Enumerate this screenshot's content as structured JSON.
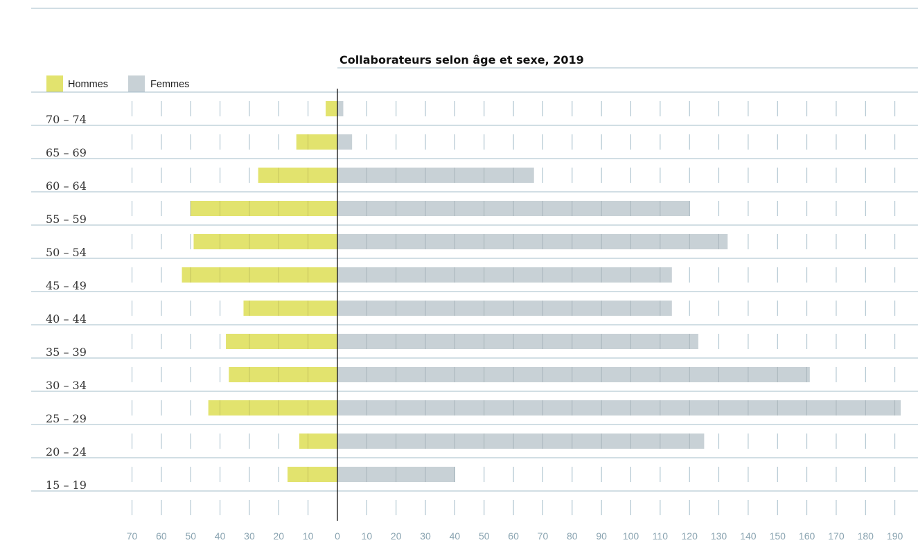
{
  "colors": {
    "men": "#e2e36e",
    "women": "#c8d1d6",
    "grid": "#a3bcc9",
    "axis": "#111111",
    "tick_text": "#8aa4b1"
  },
  "chart_data": {
    "type": "bar",
    "orientation": "horizontal-population-pyramid",
    "title": "Collaborateurs selon âge et sexe, 2019",
    "legend_position": "top-left",
    "categories": [
      "70 – 74",
      "65 – 69",
      "60 – 64",
      "55 – 59",
      "50 – 54",
      "45 – 49",
      "40 – 44",
      "35 – 39",
      "30 – 34",
      "25 – 29",
      "20 – 24",
      "15 – 19"
    ],
    "series": [
      {
        "name": "Hommes",
        "values": [
          4,
          14,
          27,
          50,
          49,
          53,
          32,
          38,
          37,
          44,
          13,
          17
        ]
      },
      {
        "name": "Femmes",
        "values": [
          2,
          5,
          67,
          120,
          133,
          114,
          114,
          123,
          161,
          192,
          125,
          40
        ]
      }
    ],
    "xlim": [
      -70,
      190
    ],
    "x_tick_labels": [
      "70",
      "60",
      "50",
      "40",
      "30",
      "20",
      "10",
      "0",
      "10",
      "20",
      "30",
      "40",
      "50",
      "60",
      "70",
      "80",
      "90",
      "100",
      "110",
      "120",
      "130",
      "140",
      "150",
      "160",
      "170",
      "180",
      "190"
    ],
    "grid": true
  }
}
